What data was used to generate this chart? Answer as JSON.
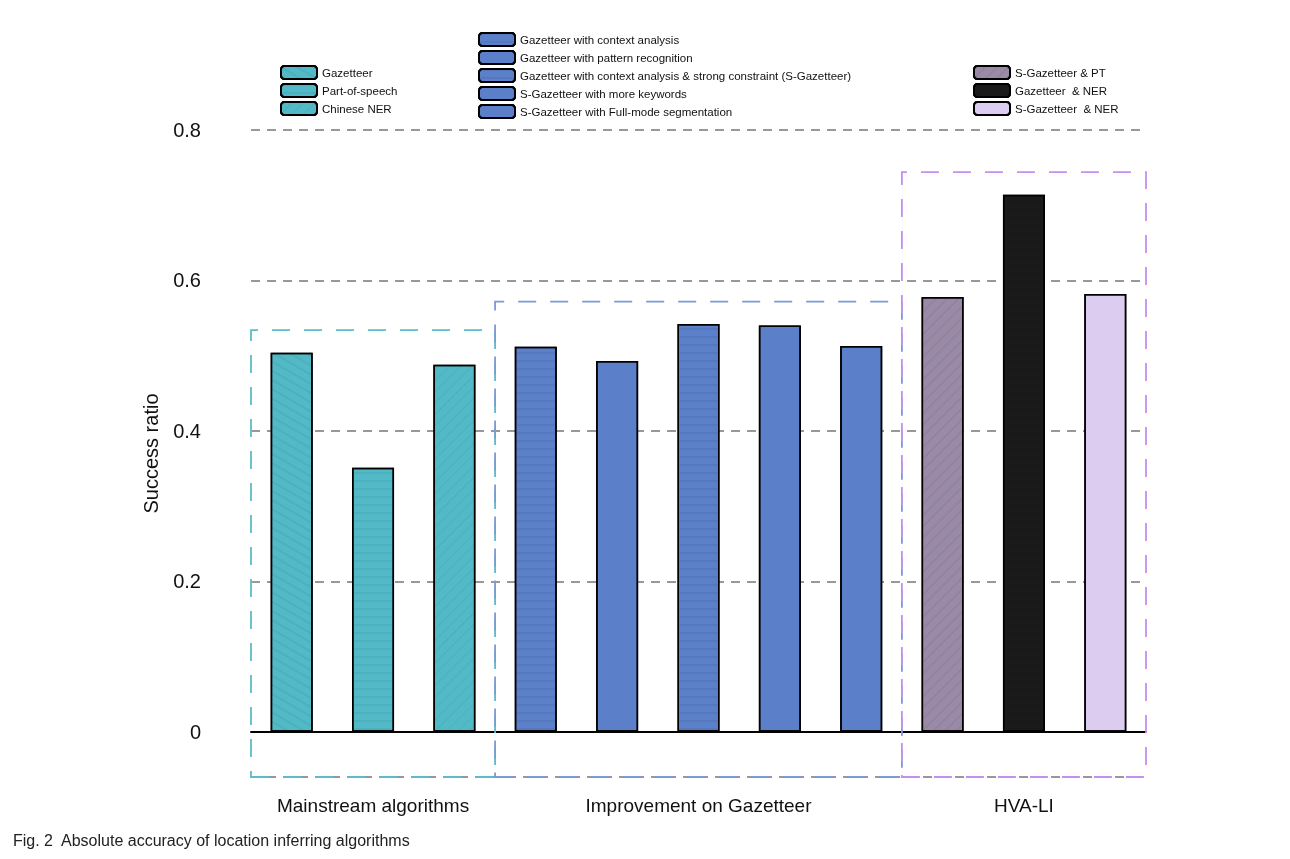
{
  "chart_data": {
    "type": "bar",
    "title": "Fig. 2  Absolute accuracy of location inferring algorithms",
    "ylabel": "Success ratio",
    "categories": [
      null,
      null,
      null,
      null,
      null,
      null,
      null,
      null,
      null,
      null,
      null
    ],
    "series": [
      {
        "name": "Gazetteer",
        "color": "#52b9c6",
        "values": [
          0.504,
          null,
          null,
          null,
          null,
          null,
          null,
          null,
          null,
          null,
          null
        ]
      },
      {
        "name": "Part-of-speech",
        "color": "#52b9c6",
        "values": [
          null,
          0.351,
          null,
          null,
          null,
          null,
          null,
          null,
          null,
          null,
          null
        ]
      },
      {
        "name": "Chinese NER",
        "color": "#52b9c6",
        "values": [
          null,
          null,
          0.488,
          null,
          null,
          null,
          null,
          null,
          null,
          null,
          null
        ]
      },
      {
        "name": "Gazetteer with context analysis",
        "color": "#5b7fc8",
        "values": [
          null,
          null,
          null,
          0.512,
          null,
          null,
          null,
          null,
          null,
          null,
          null
        ]
      },
      {
        "name": "Gazetteer with pattern recognition",
        "color": "#5b7fc8",
        "values": [
          null,
          null,
          null,
          null,
          0.493,
          null,
          null,
          null,
          null,
          null,
          null
        ]
      },
      {
        "name": "Gazetteer with context analysis & strong constraint (S-Gazetteer)",
        "color": "#5b7fc8",
        "values": [
          null,
          null,
          null,
          null,
          null,
          0.542,
          null,
          null,
          null,
          null,
          null
        ]
      },
      {
        "name": "S-Gazetteer with more keywords",
        "color": "#5b7fc8",
        "values": [
          null,
          null,
          null,
          null,
          null,
          null,
          0.54,
          null,
          null,
          null,
          null
        ]
      },
      {
        "name": "S-Gazetteer with Full-mode segmentation",
        "color": "#5b7fc8",
        "values": [
          null,
          null,
          null,
          null,
          null,
          null,
          null,
          0.513,
          null,
          null,
          null
        ]
      },
      {
        "name": "S-Gazetteer & PT",
        "color": "#9a8aa8",
        "values": [
          null,
          null,
          null,
          null,
          null,
          null,
          null,
          null,
          0.578,
          null,
          null
        ]
      },
      {
        "name": "Gazetteer  & NER",
        "color": "#1a1a1a",
        "values": [
          null,
          null,
          null,
          null,
          null,
          null,
          null,
          null,
          null,
          0.714,
          null
        ]
      },
      {
        "name": "S-Gazetteer  & NER",
        "color": "#dccdf0",
        "values": [
          null,
          null,
          null,
          null,
          null,
          null,
          null,
          null,
          null,
          null,
          0.582
        ]
      }
    ],
    "ylim": [
      -0.06,
      0.8
    ],
    "yticks": [
      0,
      0.2,
      0.4,
      0.6,
      0.8
    ],
    "annotations": [
      "Mainstream algorithms",
      "Improvement on Gazetteer",
      "HVA-LI"
    ],
    "grid": "y",
    "legend": "top",
    "tick_labels": "y"
  }
}
